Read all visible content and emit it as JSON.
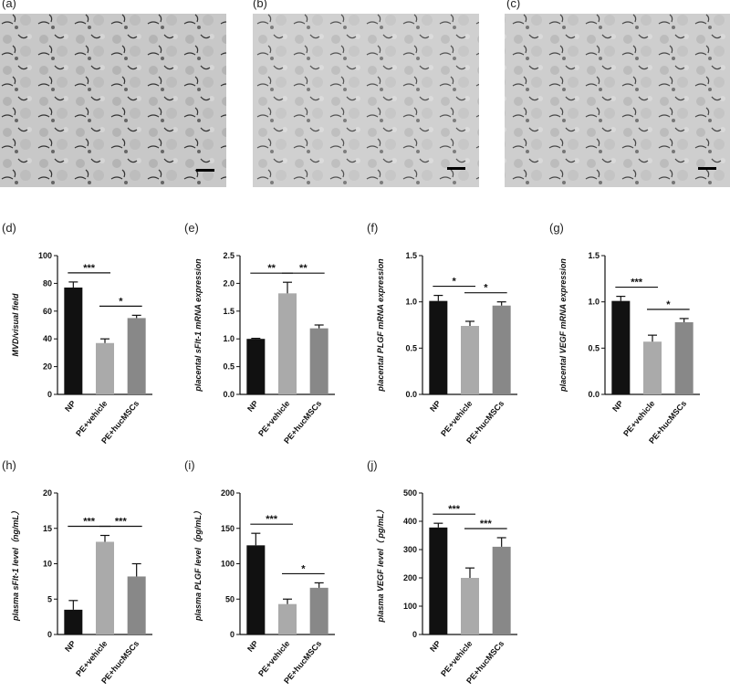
{
  "images": [
    {
      "label": "(a)"
    },
    {
      "label": "(b)"
    },
    {
      "label": "(c)"
    }
  ],
  "chart_data": [
    {
      "type": "bar",
      "panel": "(d)",
      "ylabel": "MVD/visual field",
      "categories": [
        "NP",
        "PE+vehicle",
        "PE+hucMSCs"
      ],
      "values": [
        77,
        37,
        55
      ],
      "errors": [
        4,
        3,
        2
      ],
      "colors": [
        "#111111",
        "#aaaaaa",
        "#888888"
      ],
      "ylim": [
        0,
        100
      ],
      "yticks": [
        0,
        20,
        40,
        60,
        80,
        100
      ],
      "annotations": [
        {
          "text": "***",
          "from": 0,
          "to": 1
        },
        {
          "text": "*",
          "from": 1,
          "to": 2
        }
      ]
    },
    {
      "type": "bar",
      "panel": "(e)",
      "ylabel": "placental sFlt-1 mRNA expression",
      "categories": [
        "NP",
        "PE+vehicle",
        "PE+hucMSCs"
      ],
      "values": [
        1.0,
        1.82,
        1.19
      ],
      "errors": [
        0.01,
        0.2,
        0.06
      ],
      "colors": [
        "#111111",
        "#aaaaaa",
        "#888888"
      ],
      "ylim": [
        0,
        2.5
      ],
      "yticks": [
        {
          "value": 0,
          "label": "0.0"
        },
        0.5,
        {
          "value": 1,
          "label": "1.0"
        },
        1.5,
        {
          "value": 2,
          "label": "2.0"
        },
        2.5
      ],
      "annotations": [
        {
          "text": "**",
          "from": 0,
          "to": 1
        },
        {
          "text": "**",
          "from": 1,
          "to": 2
        }
      ]
    },
    {
      "type": "bar",
      "panel": "(f)",
      "ylabel": "placental PLGF mRNA expression",
      "categories": [
        "NP",
        "PE+vehicle",
        "PE+hucMSCs"
      ],
      "values": [
        1.01,
        0.74,
        0.96
      ],
      "errors": [
        0.06,
        0.05,
        0.04
      ],
      "colors": [
        "#111111",
        "#aaaaaa",
        "#888888"
      ],
      "ylim": [
        0,
        1.5
      ],
      "yticks": [
        {
          "value": 0,
          "label": "0.0"
        },
        0.5,
        {
          "value": 1,
          "label": "1.0"
        },
        1.5
      ],
      "annotations": [
        {
          "text": "*",
          "from": 0,
          "to": 1
        },
        {
          "text": "*",
          "from": 1,
          "to": 2
        }
      ]
    },
    {
      "type": "bar",
      "panel": "(g)",
      "ylabel": "placental VEGF mRNA expression",
      "categories": [
        "NP",
        "PE+vehicle",
        "PE+hucMSCs"
      ],
      "values": [
        1.01,
        0.57,
        0.78
      ],
      "errors": [
        0.05,
        0.07,
        0.04
      ],
      "colors": [
        "#111111",
        "#aaaaaa",
        "#888888"
      ],
      "ylim": [
        0,
        1.5
      ],
      "yticks": [
        {
          "value": 0,
          "label": "0.0"
        },
        0.5,
        {
          "value": 1,
          "label": "1.0"
        },
        1.5
      ],
      "annotations": [
        {
          "text": "***",
          "from": 0,
          "to": 1
        },
        {
          "text": "*",
          "from": 1,
          "to": 2
        }
      ]
    },
    {
      "type": "bar",
      "panel": "(h)",
      "ylabel": "plasma sFlt-1 level（ng/mL）",
      "categories": [
        "NP",
        "PE+vehicle",
        "PE+hucMSCs"
      ],
      "values": [
        3.5,
        13.1,
        8.2
      ],
      "errors": [
        1.3,
        0.9,
        1.8
      ],
      "colors": [
        "#111111",
        "#aaaaaa",
        "#888888"
      ],
      "ylim": [
        0,
        20
      ],
      "yticks": [
        0,
        5,
        10,
        15,
        20
      ],
      "annotations": [
        {
          "text": "***",
          "from": 0,
          "to": 1
        },
        {
          "text": "***",
          "from": 1,
          "to": 2
        }
      ]
    },
    {
      "type": "bar",
      "panel": "(i)",
      "ylabel": "plasma PLGF level（pg/mL）",
      "categories": [
        "NP",
        "PE+vehicle",
        "PE+hucMSCs"
      ],
      "values": [
        126,
        43,
        66
      ],
      "errors": [
        17,
        7,
        7
      ],
      "colors": [
        "#111111",
        "#aaaaaa",
        "#888888"
      ],
      "ylim": [
        0,
        200
      ],
      "yticks": [
        0,
        50,
        100,
        150,
        200
      ],
      "annotations": [
        {
          "text": "***",
          "from": 0,
          "to": 1
        },
        {
          "text": "*",
          "from": 1,
          "to": 2
        }
      ]
    },
    {
      "type": "bar",
      "panel": "(j)",
      "ylabel": "plasma VEGF level（ pg/mL）",
      "categories": [
        "NP",
        "PE+vehicle",
        "PE+hucMSCs"
      ],
      "values": [
        378,
        200,
        310
      ],
      "errors": [
        15,
        35,
        32
      ],
      "colors": [
        "#111111",
        "#aaaaaa",
        "#888888"
      ],
      "ylim": [
        0,
        500
      ],
      "yticks": [
        0,
        100,
        200,
        300,
        400,
        500
      ],
      "annotations": [
        {
          "text": "***",
          "from": 0,
          "to": 1
        },
        {
          "text": "***",
          "from": 1,
          "to": 2
        }
      ]
    }
  ]
}
